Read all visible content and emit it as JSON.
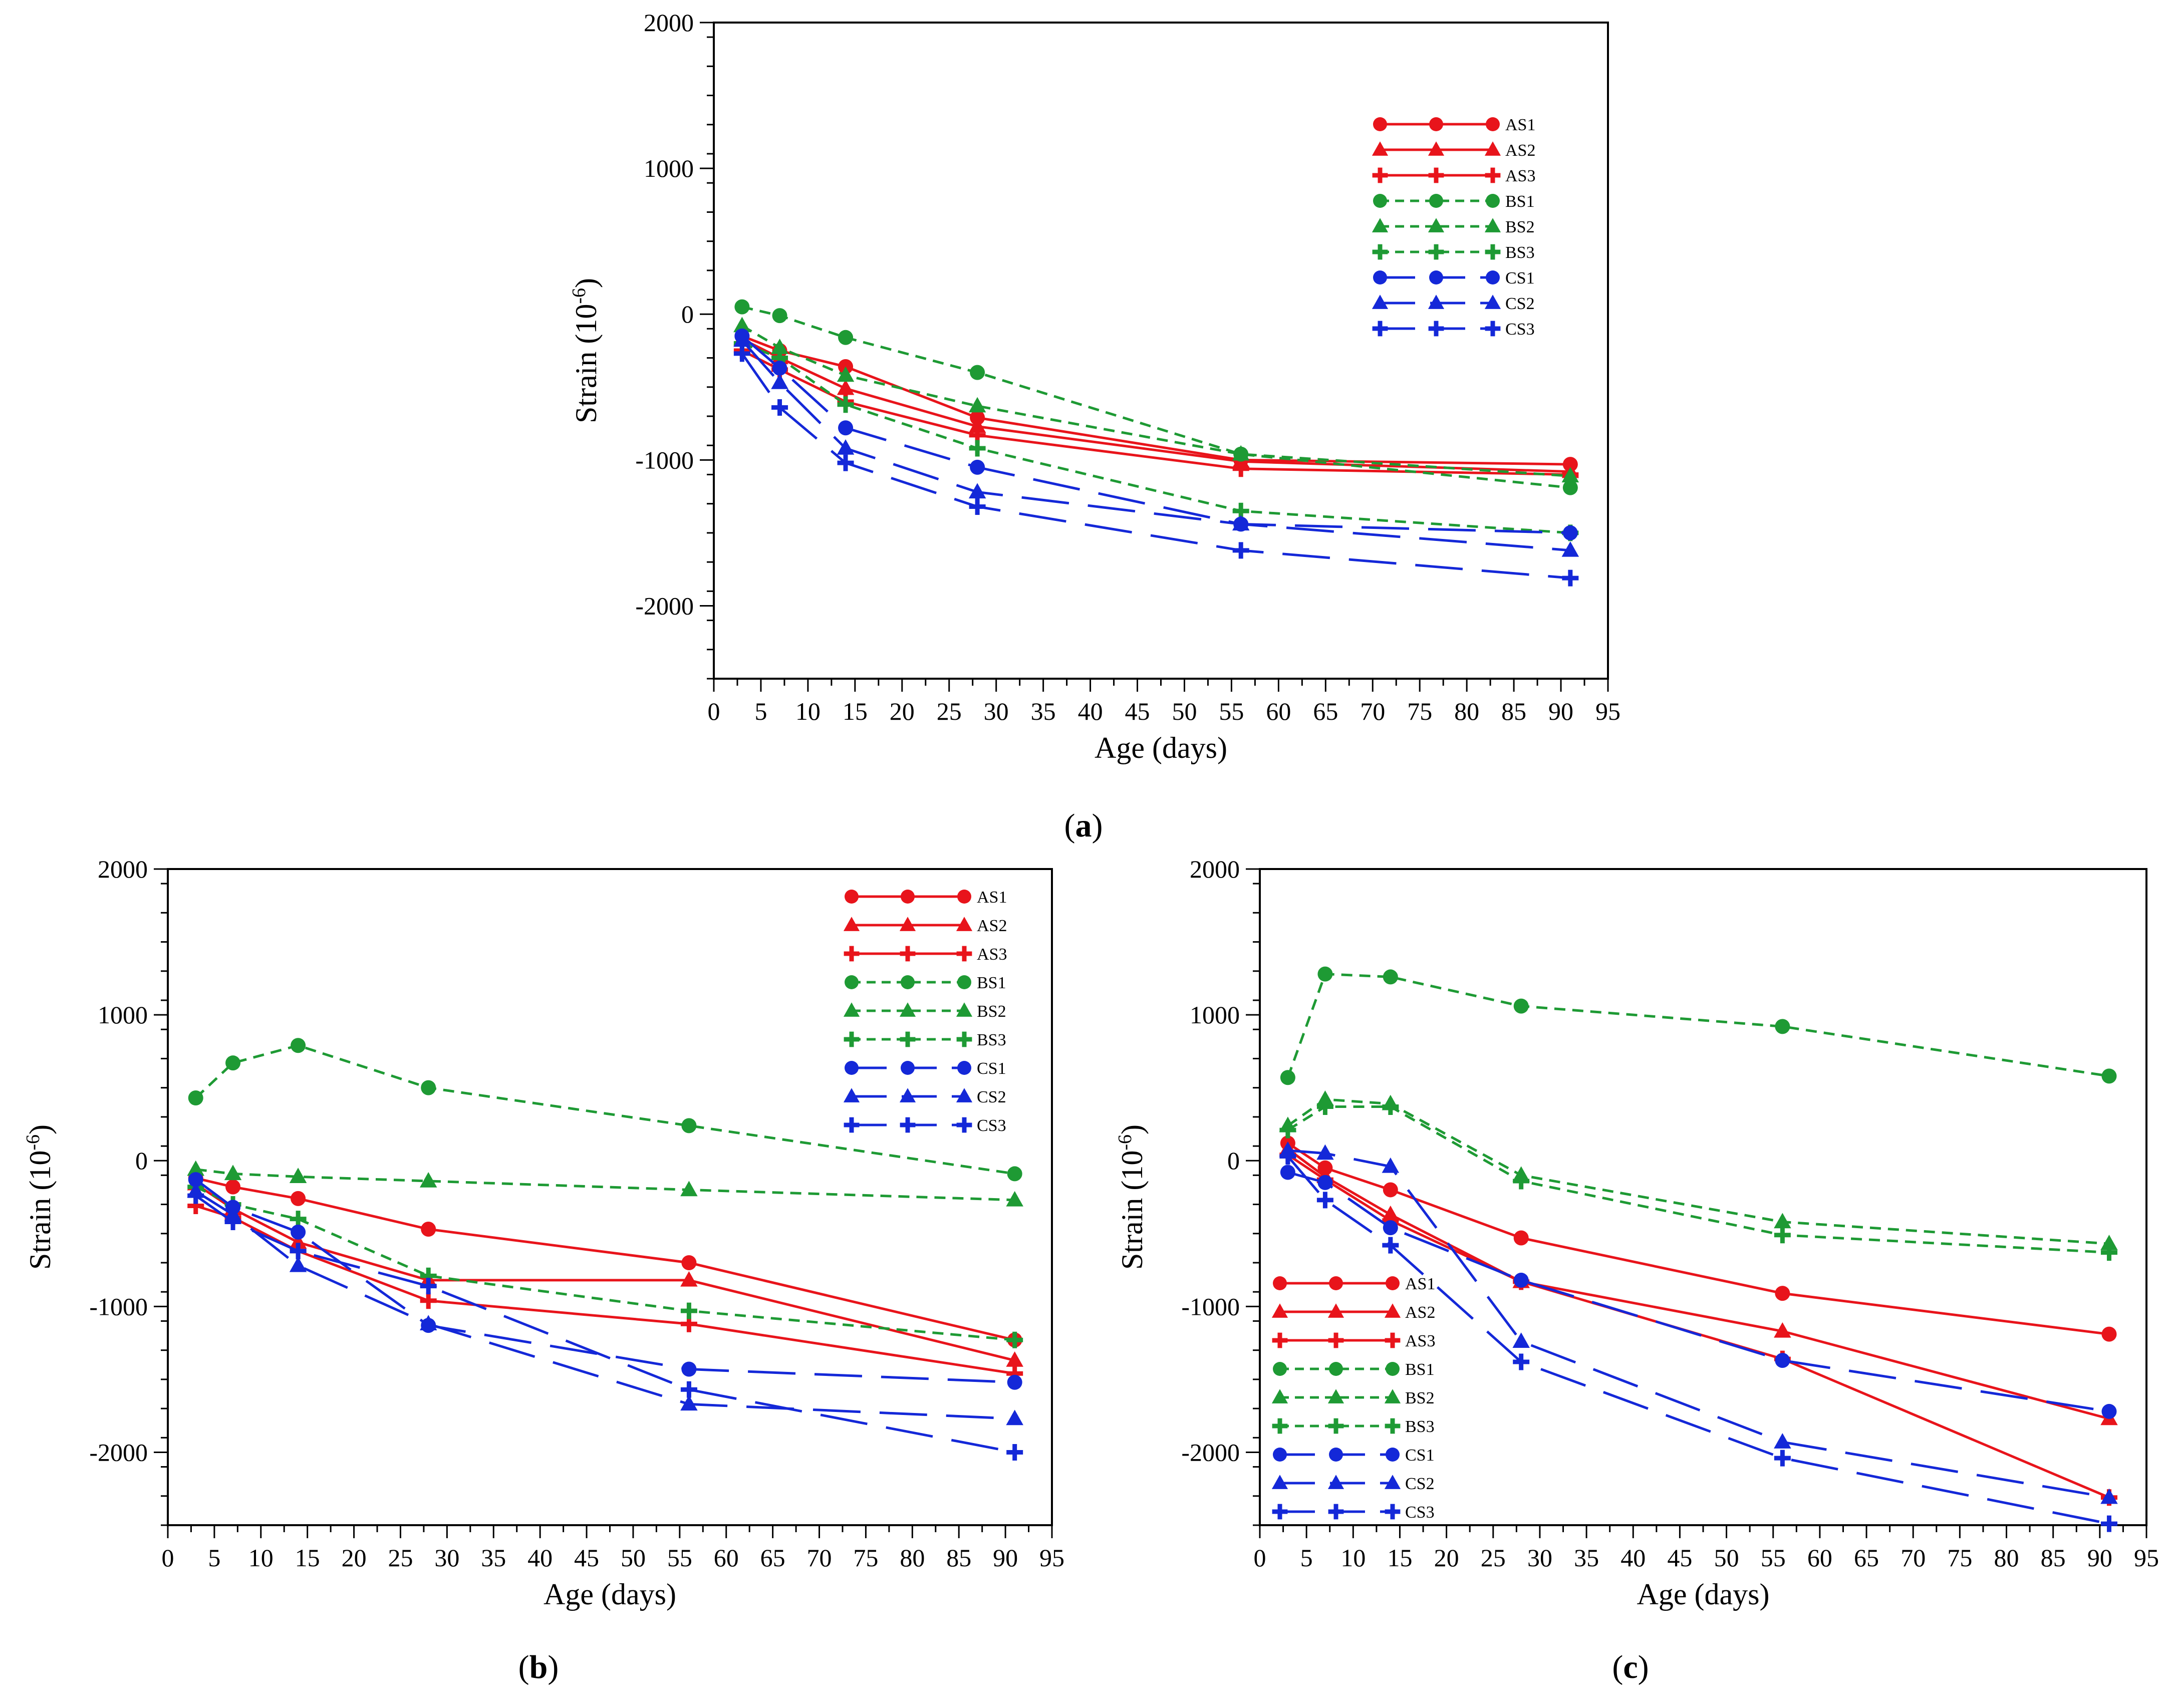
{
  "figure": {
    "y_title_main": "Strain (10",
    "y_title_exp": "-6",
    "y_title_close": ")"
  },
  "styles": {
    "AS1": {
      "color": "#e8141b",
      "marker": "circle",
      "dash": "solid"
    },
    "AS2": {
      "color": "#e8141b",
      "marker": "triangle",
      "dash": "solid"
    },
    "AS3": {
      "color": "#e8141b",
      "marker": "plus",
      "dash": "solid"
    },
    "BS1": {
      "color": "#1e9a34",
      "marker": "circle",
      "dash": "short"
    },
    "BS2": {
      "color": "#1e9a34",
      "marker": "triangle",
      "dash": "short"
    },
    "BS3": {
      "color": "#1e9a34",
      "marker": "plus",
      "dash": "short"
    },
    "CS1": {
      "color": "#1428d8",
      "marker": "circle",
      "dash": "long"
    },
    "CS2": {
      "color": "#1428d8",
      "marker": "triangle",
      "dash": "long"
    },
    "CS3": {
      "color": "#1428d8",
      "marker": "plus",
      "dash": "long"
    }
  },
  "chart_data": [
    {
      "panel": "a",
      "label_prefix": "(",
      "label_letter": "a",
      "label_suffix": ")",
      "type": "line",
      "xlabel": "Age (days)",
      "ylabel": "Strain (10^-6)",
      "xlim": [
        0,
        95
      ],
      "ylim": [
        -2500,
        2000
      ],
      "x_ticks": [
        0,
        5,
        10,
        15,
        20,
        25,
        30,
        35,
        40,
        45,
        50,
        55,
        60,
        65,
        70,
        75,
        80,
        85,
        90,
        95
      ],
      "y_ticks": [
        2000,
        1000,
        0,
        -1000,
        -2000
      ],
      "x_tick_labels": [
        "0",
        "5",
        "10",
        "15",
        "20",
        "25",
        "30",
        "35",
        "40",
        "45",
        "50",
        "55",
        "60",
        "65",
        "70",
        "75",
        "80",
        "85",
        "90",
        "95"
      ],
      "y_tick_labels": [
        "2000",
        "1000",
        "0",
        "-1000",
        "-2000"
      ],
      "legend_position": "upper-right",
      "x": [
        3,
        7,
        14,
        28,
        56,
        91
      ],
      "series": [
        {
          "name": "AS1",
          "values": [
            -150,
            -250,
            -360,
            -710,
            -1000,
            -1030
          ]
        },
        {
          "name": "AS2",
          "values": [
            -170,
            -300,
            -510,
            -770,
            -1010,
            -1080
          ]
        },
        {
          "name": "AS3",
          "values": [
            -250,
            -380,
            -600,
            -830,
            -1060,
            -1100
          ]
        },
        {
          "name": "BS1",
          "values": [
            50,
            -10,
            -160,
            -400,
            -960,
            -1190
          ]
        },
        {
          "name": "BS2",
          "values": [
            -80,
            -230,
            -420,
            -630,
            -960,
            -1110
          ]
        },
        {
          "name": "BS3",
          "values": [
            -200,
            -300,
            -620,
            -920,
            -1350,
            -1500
          ]
        },
        {
          "name": "CS1",
          "values": [
            -150,
            -370,
            -780,
            -1050,
            -1440,
            -1500
          ]
        },
        {
          "name": "CS2",
          "values": [
            -180,
            -470,
            -920,
            -1220,
            -1440,
            -1620
          ]
        },
        {
          "name": "CS3",
          "values": [
            -270,
            -640,
            -1020,
            -1320,
            -1620,
            -1810
          ]
        }
      ]
    },
    {
      "panel": "b",
      "label_prefix": "(",
      "label_letter": "b",
      "label_suffix": ")",
      "type": "line",
      "xlabel": "Age (days)",
      "ylabel": "Strain (10^-6)",
      "xlim": [
        0,
        95
      ],
      "ylim": [
        -2500,
        2000
      ],
      "x_ticks": [
        0,
        5,
        10,
        15,
        20,
        25,
        30,
        35,
        40,
        45,
        50,
        55,
        60,
        65,
        70,
        75,
        80,
        85,
        90,
        95
      ],
      "y_ticks": [
        2000,
        1000,
        0,
        -1000,
        -2000
      ],
      "x_tick_labels": [
        "0",
        "5",
        "10",
        "15",
        "20",
        "25",
        "30",
        "35",
        "40",
        "45",
        "50",
        "55",
        "60",
        "65",
        "70",
        "75",
        "80",
        "85",
        "90",
        "95"
      ],
      "y_tick_labels": [
        "2000",
        "1000",
        "0",
        "-1000",
        "-2000"
      ],
      "legend_position": "upper-right",
      "x": [
        3,
        7,
        14,
        28,
        56,
        91
      ],
      "series": [
        {
          "name": "AS1",
          "values": [
            -120,
            -180,
            -260,
            -470,
            -700,
            -1230
          ]
        },
        {
          "name": "AS2",
          "values": [
            -160,
            -330,
            -560,
            -820,
            -820,
            -1370
          ]
        },
        {
          "name": "AS3",
          "values": [
            -310,
            -390,
            -620,
            -960,
            -1120,
            -1460
          ]
        },
        {
          "name": "BS1",
          "values": [
            430,
            670,
            790,
            500,
            240,
            -90
          ]
        },
        {
          "name": "BS2",
          "values": [
            -60,
            -90,
            -110,
            -140,
            -200,
            -270
          ]
        },
        {
          "name": "BS3",
          "values": [
            -180,
            -300,
            -400,
            -790,
            -1030,
            -1230
          ]
        },
        {
          "name": "CS1",
          "values": [
            -130,
            -320,
            -490,
            -1130,
            -1430,
            -1520
          ]
        },
        {
          "name": "CS2",
          "values": [
            -210,
            -370,
            -720,
            -1120,
            -1670,
            -1770
          ]
        },
        {
          "name": "CS3",
          "values": [
            -240,
            -420,
            -620,
            -860,
            -1570,
            -2000
          ]
        }
      ]
    },
    {
      "panel": "c",
      "label_prefix": "(",
      "label_letter": "c",
      "label_suffix": ")",
      "type": "line",
      "xlabel": "Age (days)",
      "ylabel": "Strain (10^-6)",
      "xlim": [
        0,
        95
      ],
      "ylim": [
        -2500,
        2000
      ],
      "x_ticks": [
        0,
        5,
        10,
        15,
        20,
        25,
        30,
        35,
        40,
        45,
        50,
        55,
        60,
        65,
        70,
        75,
        80,
        85,
        90,
        95
      ],
      "y_ticks": [
        2000,
        1000,
        0,
        -1000,
        -2000
      ],
      "x_tick_labels": [
        "0",
        "5",
        "10",
        "15",
        "20",
        "25",
        "30",
        "35",
        "40",
        "45",
        "50",
        "55",
        "60",
        "65",
        "70",
        "75",
        "80",
        "85",
        "90",
        "95"
      ],
      "y_tick_labels": [
        "2000",
        "1000",
        "0",
        "-1000",
        "-2000"
      ],
      "legend_position": "lower-left",
      "x": [
        3,
        7,
        14,
        28,
        56,
        91
      ],
      "series": [
        {
          "name": "AS1",
          "values": [
            120,
            -50,
            -200,
            -530,
            -910,
            -1190
          ]
        },
        {
          "name": "AS2",
          "values": [
            80,
            -110,
            -370,
            -830,
            -1170,
            -1770
          ]
        },
        {
          "name": "AS3",
          "values": [
            40,
            -130,
            -410,
            -830,
            -1360,
            -2310
          ]
        },
        {
          "name": "BS1",
          "values": [
            570,
            1280,
            1260,
            1060,
            920,
            580
          ]
        },
        {
          "name": "BS2",
          "values": [
            240,
            420,
            390,
            -100,
            -420,
            -570
          ]
        },
        {
          "name": "BS3",
          "values": [
            210,
            370,
            370,
            -140,
            -510,
            -630
          ]
        },
        {
          "name": "CS1",
          "values": [
            -80,
            -150,
            -460,
            -820,
            -1370,
            -1720
          ]
        },
        {
          "name": "CS2",
          "values": [
            70,
            50,
            -40,
            -1240,
            -1930,
            -2310
          ]
        },
        {
          "name": "CS3",
          "values": [
            30,
            -270,
            -580,
            -1380,
            -2040,
            -2490
          ]
        }
      ]
    }
  ]
}
